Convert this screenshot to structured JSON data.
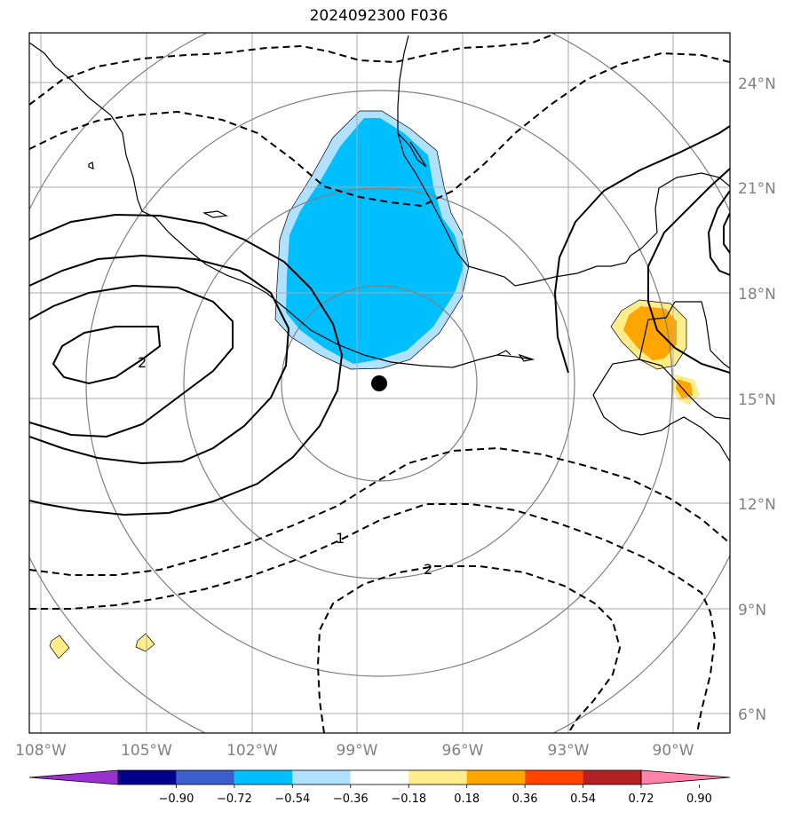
{
  "title": "2024092300 F036",
  "lat_labels": [
    "24°N",
    "21°N",
    "18°N",
    "15°N",
    "12°N",
    "9°N",
    "6°N"
  ],
  "lon_labels": [
    "108°W",
    "105°W",
    "102°W",
    "99°W",
    "96°W",
    "93°W",
    "90°W"
  ],
  "contour_labels": [
    "2",
    "1",
    "2"
  ],
  "colorbar": {
    "tick_labels": [
      "−0.90",
      "−0.72",
      "−0.54",
      "−0.36",
      "−0.18",
      "0.18",
      "0.36",
      "0.54",
      "0.72",
      "0.90"
    ],
    "colors": [
      "#9b30d0",
      "#00008b",
      "#3a5fcd",
      "#00bfff",
      "#b0e2ff",
      "#ffffff",
      "#ffec8b",
      "#ffa500",
      "#ff4500",
      "#b22222",
      "#ff82ab"
    ]
  },
  "colors": {
    "negative_fill": "#00bfff",
    "negative_fill_light": "#b0e2ff",
    "positive_fill": "#ffa500",
    "positive_fill_light": "#ffec8b",
    "grid": "#aaaaaa",
    "range_rings": "#808080"
  },
  "storm_center_marker": "filled black circle"
}
